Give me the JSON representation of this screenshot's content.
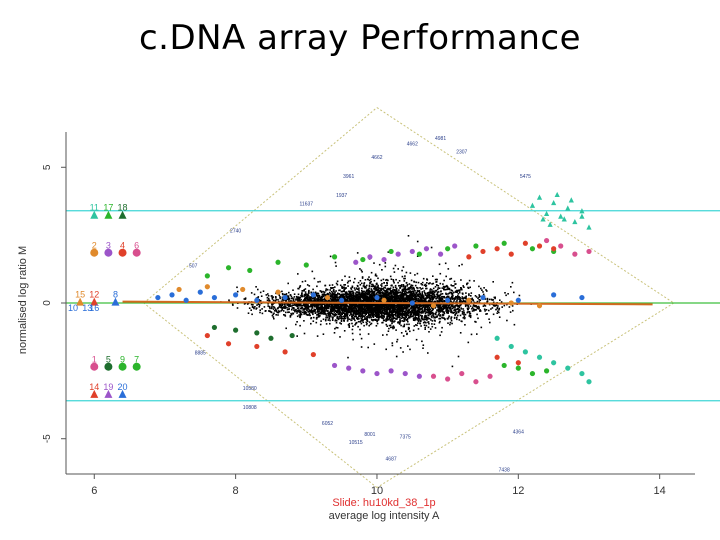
{
  "slide": {
    "title": "c.DNA array Performance"
  },
  "chart_data": {
    "type": "scatter",
    "title": "",
    "xlabel": "average log intensity A",
    "ylabel": "normalised log ratio M",
    "xlim": [
      5.6,
      14.5
    ],
    "ylim": [
      -6.3,
      6.3
    ],
    "xticks": [
      "6",
      "8",
      "10",
      "12",
      "14"
    ],
    "yticks": [
      "-5",
      "0",
      "5"
    ],
    "slide_label": "Slide: hu10kd_38_1p",
    "hlines": [
      {
        "y": 3.4,
        "color": "#40d6d6"
      },
      {
        "y": -3.6,
        "color": "#40d6d6"
      },
      {
        "y": 0.0,
        "color": "#3fbf3f"
      }
    ],
    "envelope": {
      "apex_left": [
        6.7,
        0.0
      ],
      "apex_top": [
        10.0,
        7.2
      ],
      "apex_right": [
        14.2,
        0.0
      ],
      "apex_bottom": [
        10.0,
        -6.8
      ]
    },
    "colors": {
      "points": "#000000",
      "loess": "#d2691e",
      "teal": "#2ec4a0",
      "green": "#2bb52b",
      "red": "#e0402a",
      "purple": "#9c55c9",
      "pink": "#d84f8e",
      "blue": "#2a6ed8",
      "darkgreen": "#1e6e2e",
      "orange": "#e08a2c"
    },
    "legend_groups": [
      {
        "labels": [
          "11",
          "17",
          "18"
        ],
        "colors": [
          "#2ec4a0",
          "#2bb52b",
          "#1e6e2e"
        ],
        "label_x": [
          6.0,
          6.2,
          6.4
        ],
        "y": 3.4,
        "shape": "triangle"
      },
      {
        "labels": [
          "2",
          "3",
          "4",
          "6"
        ],
        "colors": [
          "#e08a2c",
          "#9c55c9",
          "#e0402a",
          "#d84f8e"
        ],
        "label_x": [
          6.0,
          6.2,
          6.4,
          6.6
        ],
        "y": 2.0,
        "shape": "circle"
      },
      {
        "labels": [
          "15",
          "12",
          "8"
        ],
        "colors": [
          "#e08a2c",
          "#e0402a",
          "#2a6ed8"
        ],
        "label_x": [
          5.8,
          6.0,
          6.3
        ],
        "y": 0.2,
        "shape": "triangle"
      },
      {
        "labels": [
          "10",
          "13",
          "16"
        ],
        "colors": [
          "#2a6ed8",
          "#2a6ed8",
          "#2a6ed8"
        ],
        "label_x": [
          5.7,
          5.9,
          6.0
        ],
        "y": -0.3,
        "shape": "none"
      },
      {
        "labels": [
          "1",
          "5",
          "9",
          "7"
        ],
        "colors": [
          "#d84f8e",
          "#1e6e2e",
          "#2bb52b",
          "#2bb52b"
        ],
        "label_x": [
          6.0,
          6.2,
          6.4,
          6.6
        ],
        "y": -2.2,
        "shape": "circle"
      },
      {
        "labels": [
          "14",
          "19",
          "20"
        ],
        "colors": [
          "#e0402a",
          "#9c55c9",
          "#2a6ed8"
        ],
        "label_x": [
          6.0,
          6.2,
          6.4
        ],
        "y": -3.2,
        "shape": "triangle"
      }
    ],
    "spot_labels": [
      {
        "text": "4981",
        "x": 10.9,
        "y": 6.0
      },
      {
        "text": "4662",
        "x": 10.5,
        "y": 5.8
      },
      {
        "text": "4662",
        "x": 10.0,
        "y": 5.3
      },
      {
        "text": "2307",
        "x": 11.2,
        "y": 5.5
      },
      {
        "text": "3961",
        "x": 9.6,
        "y": 4.6
      },
      {
        "text": "5475",
        "x": 12.1,
        "y": 4.6
      },
      {
        "text": "1937",
        "x": 9.5,
        "y": 3.9
      },
      {
        "text": "11637",
        "x": 9.0,
        "y": 3.6
      },
      {
        "text": "2740",
        "x": 8.0,
        "y": 2.6
      },
      {
        "text": "507",
        "x": 7.4,
        "y": 1.3
      },
      {
        "text": "8885",
        "x": 7.5,
        "y": -1.9
      },
      {
        "text": "10580",
        "x": 8.2,
        "y": -3.2
      },
      {
        "text": "10808",
        "x": 8.2,
        "y": -3.9
      },
      {
        "text": "6052",
        "x": 9.3,
        "y": -4.5
      },
      {
        "text": "8001",
        "x": 9.9,
        "y": -4.9
      },
      {
        "text": "10515",
        "x": 9.7,
        "y": -5.2
      },
      {
        "text": "7375",
        "x": 10.4,
        "y": -5.0
      },
      {
        "text": "4364",
        "x": 12.0,
        "y": -4.8
      },
      {
        "text": "4687",
        "x": 10.2,
        "y": -5.8
      },
      {
        "text": "7438",
        "x": 11.8,
        "y": -6.2
      }
    ],
    "control_series": [
      {
        "name": "",
        "color": "#2ec4a0",
        "shape": "triangle",
        "points": [
          [
            12.2,
            3.6
          ],
          [
            12.3,
            3.9
          ],
          [
            12.4,
            3.3
          ],
          [
            12.5,
            3.7
          ],
          [
            12.6,
            3.2
          ],
          [
            12.7,
            3.5
          ],
          [
            12.8,
            3.0
          ],
          [
            12.9,
            3.4
          ],
          [
            13.0,
            2.8
          ],
          [
            12.35,
            3.1
          ],
          [
            12.55,
            4.0
          ],
          [
            12.75,
            3.8
          ],
          [
            12.45,
            2.9
          ],
          [
            12.65,
            3.1
          ],
          [
            12.9,
            3.2
          ]
        ]
      },
      {
        "name": "",
        "color": "#2bb52b",
        "shape": "circle",
        "points": [
          [
            7.6,
            1.0
          ],
          [
            7.9,
            1.3
          ],
          [
            8.2,
            1.2
          ],
          [
            8.6,
            1.5
          ],
          [
            9.0,
            1.4
          ],
          [
            9.4,
            1.7
          ],
          [
            9.8,
            1.6
          ],
          [
            10.2,
            1.9
          ],
          [
            10.6,
            1.8
          ],
          [
            11.0,
            2.0
          ],
          [
            11.4,
            2.1
          ],
          [
            11.8,
            2.2
          ],
          [
            12.2,
            2.0
          ],
          [
            12.5,
            1.9
          ]
        ]
      },
      {
        "name": "",
        "color": "#9c55c9",
        "shape": "circle",
        "points": [
          [
            9.7,
            1.5
          ],
          [
            9.9,
            1.7
          ],
          [
            10.1,
            1.6
          ],
          [
            10.3,
            1.8
          ],
          [
            10.5,
            1.9
          ],
          [
            10.7,
            2.0
          ],
          [
            10.9,
            1.8
          ],
          [
            11.1,
            2.1
          ]
        ]
      },
      {
        "name": "",
        "color": "#e0402a",
        "shape": "circle",
        "points": [
          [
            11.3,
            1.7
          ],
          [
            11.5,
            1.9
          ],
          [
            11.7,
            2.0
          ],
          [
            11.9,
            1.8
          ],
          [
            12.1,
            2.2
          ],
          [
            12.3,
            2.1
          ],
          [
            12.5,
            2.0
          ]
        ]
      },
      {
        "name": "",
        "color": "#d84f8e",
        "shape": "circle",
        "points": [
          [
            12.4,
            2.3
          ],
          [
            12.6,
            2.1
          ],
          [
            12.8,
            1.8
          ],
          [
            13.0,
            1.9
          ]
        ]
      },
      {
        "name": "",
        "color": "#2a6ed8",
        "shape": "circle",
        "points": [
          [
            6.9,
            0.2
          ],
          [
            7.1,
            0.3
          ],
          [
            7.3,
            0.1
          ],
          [
            7.5,
            0.4
          ],
          [
            7.7,
            0.2
          ],
          [
            8.0,
            0.3
          ],
          [
            8.3,
            0.1
          ],
          [
            8.7,
            0.2
          ],
          [
            9.1,
            0.3
          ],
          [
            9.5,
            0.1
          ],
          [
            10.0,
            0.2
          ],
          [
            10.5,
            0.0
          ],
          [
            11.0,
            0.1
          ],
          [
            11.5,
            0.2
          ],
          [
            12.0,
            0.1
          ],
          [
            12.5,
            0.3
          ],
          [
            12.9,
            0.2
          ]
        ]
      },
      {
        "name": "",
        "color": "#e08a2c",
        "shape": "circle",
        "points": [
          [
            7.2,
            0.5
          ],
          [
            7.6,
            0.6
          ],
          [
            8.1,
            0.5
          ],
          [
            8.6,
            0.4
          ],
          [
            9.3,
            0.2
          ],
          [
            10.1,
            0.1
          ],
          [
            10.8,
            -0.1
          ],
          [
            11.3,
            0.1
          ],
          [
            11.9,
            0.0
          ],
          [
            12.3,
            -0.1
          ]
        ]
      },
      {
        "name": "",
        "color": "#e0402a",
        "shape": "circle",
        "points": [
          [
            7.6,
            -1.2
          ],
          [
            7.9,
            -1.5
          ],
          [
            8.3,
            -1.6
          ],
          [
            8.7,
            -1.8
          ],
          [
            9.1,
            -1.9
          ],
          [
            11.7,
            -2.0
          ],
          [
            12.0,
            -2.2
          ]
        ]
      },
      {
        "name": "",
        "color": "#1e6e2e",
        "shape": "circle",
        "points": [
          [
            7.7,
            -0.9
          ],
          [
            8.0,
            -1.0
          ],
          [
            8.3,
            -1.1
          ],
          [
            8.5,
            -1.3
          ],
          [
            8.8,
            -1.2
          ]
        ]
      },
      {
        "name": "",
        "color": "#9c55c9",
        "shape": "circle",
        "points": [
          [
            9.4,
            -2.3
          ],
          [
            9.6,
            -2.4
          ],
          [
            9.8,
            -2.5
          ],
          [
            10.0,
            -2.6
          ],
          [
            10.2,
            -2.5
          ],
          [
            10.4,
            -2.6
          ],
          [
            10.6,
            -2.7
          ]
        ]
      },
      {
        "name": "",
        "color": "#d84f8e",
        "shape": "circle",
        "points": [
          [
            10.8,
            -2.7
          ],
          [
            11.0,
            -2.8
          ],
          [
            11.2,
            -2.6
          ],
          [
            11.4,
            -2.9
          ],
          [
            11.6,
            -2.7
          ]
        ]
      },
      {
        "name": "",
        "color": "#2ec4a0",
        "shape": "circle",
        "points": [
          [
            11.7,
            -1.3
          ],
          [
            11.9,
            -1.6
          ],
          [
            12.1,
            -1.8
          ],
          [
            12.3,
            -2.0
          ],
          [
            12.5,
            -2.2
          ],
          [
            12.7,
            -2.4
          ],
          [
            12.9,
            -2.6
          ],
          [
            13.0,
            -2.9
          ]
        ]
      },
      {
        "name": "",
        "color": "#2bb52b",
        "shape": "circle",
        "points": [
          [
            11.8,
            -2.3
          ],
          [
            12.0,
            -2.4
          ],
          [
            12.2,
            -2.6
          ],
          [
            12.4,
            -2.5
          ]
        ]
      }
    ]
  }
}
